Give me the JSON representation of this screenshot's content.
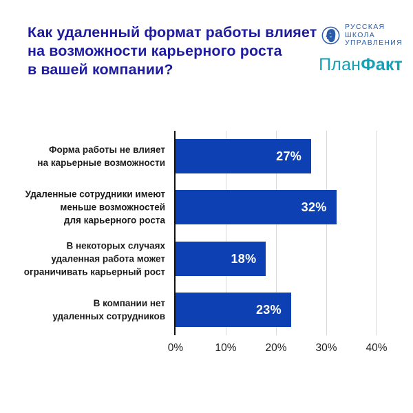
{
  "header": {
    "title": "Как удаленный формат работы влияет\nна возможности карьерного роста\nв вашей компании?",
    "logos": {
      "rsu": {
        "name": "Русская школа управления",
        "text": "РУССКАЯ\nШКОЛА\nУПРАВЛЕНИЯ"
      },
      "planfact": {
        "name": "ПланФакт",
        "part1": "План",
        "part2": "Факт"
      }
    }
  },
  "colors": {
    "title": "#1e1ca0",
    "bar": "#0d40b3",
    "rsu_logo": "#2a5caa",
    "planfact": "#14a0b5",
    "axis": "#111111",
    "grid": "#d9d9d9",
    "label": "#1c1c1c",
    "tick": "#1f1f1f",
    "value_label": "#ffffff"
  },
  "chart_data": {
    "type": "bar",
    "orientation": "horizontal",
    "title": "Как удаленный формат работы влияет на возможности карьерного роста в вашей компании?",
    "categories": [
      "Форма работы не влияет\nна карьерные возможности",
      "Удаленные сотрудники имеют\nменьше возможностей\nдля карьерного роста",
      "В некоторых случаях\nудаленная работа может\nограничивать карьерный рост",
      "В компании нет\nудаленных сотрудников"
    ],
    "values": [
      27,
      32,
      18,
      23
    ],
    "value_labels": [
      "27%",
      "32%",
      "18%",
      "23%"
    ],
    "x_ticks": [
      "0%",
      "10%",
      "20%",
      "30%",
      "40%"
    ],
    "xlim": [
      0,
      40
    ],
    "xlabel": "",
    "ylabel": "",
    "grid": true,
    "legend": false
  }
}
